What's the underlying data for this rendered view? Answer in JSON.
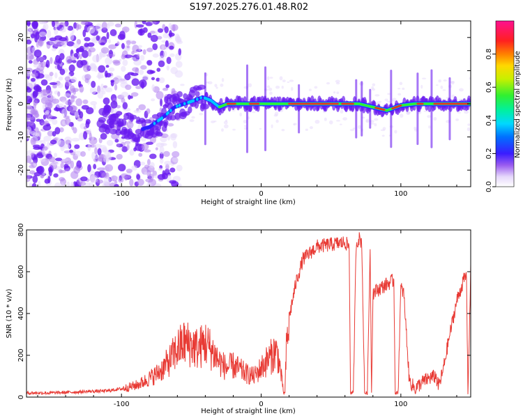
{
  "title": "S197.2025.276.01.48.R02",
  "colors": {
    "snr_line": "#e83a34",
    "spectral_core": "#e8321e",
    "spectral_dense": "#7b1ef0",
    "spectral_light": "#d7c4f7"
  },
  "chart_data": [
    {
      "type": "heatmap",
      "name": "spectrogram",
      "title": "",
      "xlabel": "Height of straight line (km)",
      "ylabel": "Frequency (Hz)",
      "xlim": [
        -168,
        150
      ],
      "ylim": [
        -25,
        25
      ],
      "xticks": [
        -100,
        0,
        100
      ],
      "xtick_labels": [
        "-100",
        "0",
        "100"
      ],
      "yticks": [
        -20,
        -10,
        0,
        10,
        20
      ],
      "ytick_labels": [
        "-20",
        "-10",
        "0",
        "10",
        "20"
      ],
      "colorbar": {
        "label": "Normalized spectral amplitude",
        "range": [
          0.0,
          1.0
        ],
        "ticks": [
          0.0,
          0.2,
          0.4,
          0.6,
          0.8
        ],
        "tick_labels": [
          "0.0",
          "0.2",
          "0.4",
          "0.6",
          "0.8"
        ],
        "colormap": [
          "#ffffff",
          "#e6d8fb",
          "#b07ff0",
          "#6a1bf0",
          "#2c1cff",
          "#0050ff",
          "#00c8ff",
          "#00f0b0",
          "#30f030",
          "#b0f000",
          "#ffe000",
          "#ff8c00",
          "#ff2a2a",
          "#ff1080"
        ]
      },
      "ridge": {
        "x": [
          -168,
          -120,
          -100,
          -88,
          -80,
          -70,
          -62,
          -55,
          -48,
          -42,
          -36,
          -30,
          -24,
          -18,
          -10,
          0,
          10,
          20,
          40,
          60,
          70,
          80,
          90,
          100,
          110,
          120,
          150
        ],
        "frequency": [
          -2,
          -4,
          -6,
          -8,
          -7,
          -4,
          -1,
          0,
          1,
          2,
          1,
          -1,
          0,
          0,
          0,
          0,
          0,
          0,
          0,
          0,
          0,
          -1,
          -2,
          -0.5,
          0,
          0,
          0
        ]
      }
    },
    {
      "type": "line",
      "name": "snr",
      "title": "",
      "xlabel": "Height of straight line (km)",
      "ylabel": "SNR (10 * v/v)",
      "xlim": [
        -168,
        150
      ],
      "ylim": [
        0,
        800
      ],
      "xticks": [
        -100,
        0,
        100
      ],
      "xtick_labels": [
        "-100",
        "0",
        "100"
      ],
      "yticks": [
        0,
        200,
        400,
        600,
        800
      ],
      "ytick_labels": [
        "0",
        "200",
        "400",
        "600",
        "800"
      ],
      "series": [
        {
          "name": "SNR",
          "x": [
            -168,
            -150,
            -130,
            -110,
            -100,
            -90,
            -85,
            -80,
            -75,
            -70,
            -65,
            -60,
            -55,
            -50,
            -45,
            -40,
            -35,
            -30,
            -25,
            -20,
            -15,
            -10,
            -5,
            0,
            5,
            8,
            10,
            12,
            14,
            16,
            17,
            18,
            20,
            25,
            30,
            40,
            50,
            60,
            63,
            64,
            66,
            68,
            70,
            72,
            74,
            75,
            76,
            78,
            79,
            80,
            85,
            90,
            95,
            96,
            98,
            100,
            102,
            104,
            106,
            110,
            115,
            120,
            125,
            127,
            130,
            135,
            140,
            145,
            147,
            148,
            150
          ],
          "y": [
            20,
            20,
            25,
            30,
            40,
            55,
            70,
            90,
            110,
            140,
            180,
            230,
            260,
            250,
            230,
            260,
            220,
            170,
            140,
            150,
            130,
            110,
            100,
            140,
            180,
            200,
            220,
            200,
            120,
            20,
            20,
            220,
            380,
            550,
            660,
            720,
            730,
            740,
            720,
            20,
            20,
            730,
            760,
            740,
            20,
            20,
            20,
            720,
            20,
            500,
            520,
            540,
            560,
            20,
            20,
            520,
            500,
            300,
            80,
            40,
            70,
            90,
            100,
            50,
            120,
            300,
            460,
            560,
            580,
            20,
            600
          ]
        }
      ]
    }
  ]
}
